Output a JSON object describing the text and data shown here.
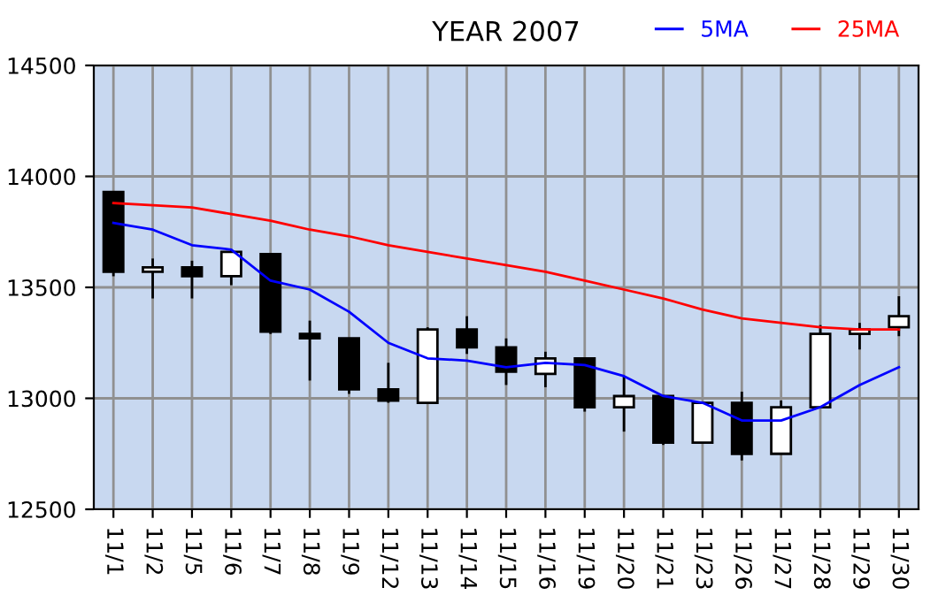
{
  "chart_data": {
    "type": "candlestick",
    "title": "YEAR 2007",
    "categories": [
      "11/1",
      "11/2",
      "11/5",
      "11/6",
      "11/7",
      "11/8",
      "11/9",
      "11/12",
      "11/13",
      "11/14",
      "11/15",
      "11/16",
      "11/19",
      "11/20",
      "11/21",
      "11/23",
      "11/26",
      "11/27",
      "11/28",
      "11/29",
      "11/30"
    ],
    "ohlc": [
      [
        13930,
        13930,
        13550,
        13570
      ],
      [
        13570,
        13630,
        13450,
        13590
      ],
      [
        13590,
        13620,
        13450,
        13550
      ],
      [
        13550,
        13670,
        13510,
        13660
      ],
      [
        13650,
        13650,
        13290,
        13300
      ],
      [
        13290,
        13350,
        13080,
        13270
      ],
      [
        13270,
        13270,
        13020,
        13040
      ],
      [
        13040,
        13160,
        12980,
        12990
      ],
      [
        12980,
        13320,
        12980,
        13310
      ],
      [
        13310,
        13370,
        13200,
        13230
      ],
      [
        13230,
        13270,
        13060,
        13120
      ],
      [
        13110,
        13210,
        13050,
        13180
      ],
      [
        13180,
        13180,
        12940,
        12960
      ],
      [
        12960,
        13100,
        12850,
        13010
      ],
      [
        13010,
        13010,
        12790,
        12800
      ],
      [
        12800,
        12980,
        12800,
        12980
      ],
      [
        12980,
        13030,
        12720,
        12750
      ],
      [
        12750,
        12990,
        12750,
        12960
      ],
      [
        12960,
        13330,
        12960,
        13290
      ],
      [
        13290,
        13340,
        13220,
        13310
      ],
      [
        13320,
        13460,
        13280,
        13370
      ]
    ],
    "series": [
      {
        "type": "line",
        "name": "5MA",
        "color": "#0000ff",
        "values": [
          13790,
          13760,
          13690,
          13670,
          13530,
          13490,
          13390,
          13250,
          13180,
          13170,
          13140,
          13160,
          13150,
          13100,
          13010,
          12980,
          12900,
          12900,
          12960,
          13060,
          13140
        ]
      },
      {
        "type": "line",
        "name": "25MA",
        "color": "#ff0000",
        "values": [
          13880,
          13870,
          13860,
          13830,
          13800,
          13760,
          13730,
          13690,
          13660,
          13630,
          13600,
          13570,
          13530,
          13490,
          13450,
          13400,
          13360,
          13340,
          13320,
          13310,
          13310
        ]
      }
    ],
    "ylim": [
      12500,
      14500
    ],
    "yticks": [
      12500,
      13000,
      13500,
      14000,
      14500
    ],
    "grid": true,
    "legend": "top right"
  }
}
